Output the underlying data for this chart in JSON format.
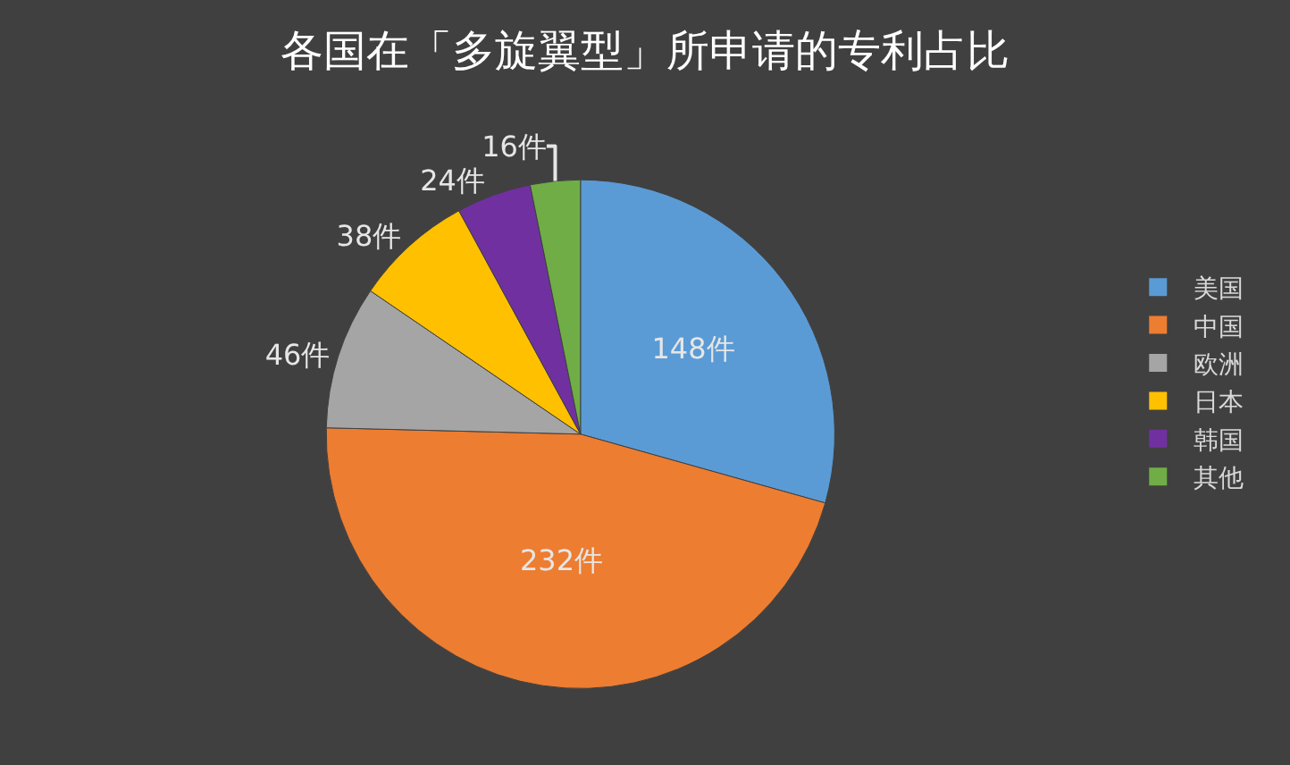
{
  "chart_data": {
    "type": "pie",
    "title": "各国在「多旋翼型」所申请的专利占比",
    "categories": [
      "美国",
      "中国",
      "欧洲",
      "日本",
      "韩国",
      "其他"
    ],
    "values": [
      148,
      232,
      46,
      38,
      24,
      16
    ],
    "colors": [
      "#5b9bd5",
      "#ed7d31",
      "#a5a5a5",
      "#ffc000",
      "#7030a0",
      "#70ad47"
    ],
    "value_labels": [
      "148件",
      "232件",
      "46件",
      "38件",
      "24件",
      "16件"
    ],
    "legend": "right"
  }
}
